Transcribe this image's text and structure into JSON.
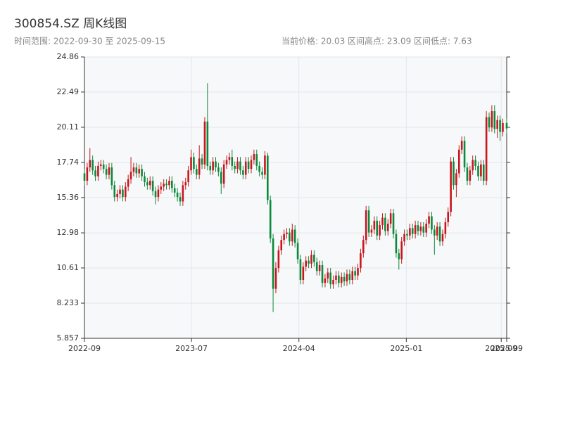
{
  "chart_data": {
    "type": "candlestick",
    "title": "300854.SZ 周K线图",
    "subtitle": "时间范围: 2022-09-30 至 2025-09-15",
    "annotations": [
      "当前价格: 20.03",
      "区间高点: 23.09",
      "区间低点: 7.63"
    ],
    "up_color": "#c8161d",
    "down_color": "#0b8a3b",
    "grid": true,
    "xlim": [
      "2022-09-30",
      "2025-09-15"
    ],
    "xticks": [
      {
        "value": "2022-09-30",
        "label": "2022-09"
      },
      {
        "value": "2023-07-01",
        "label": "2023-07"
      },
      {
        "value": "2024-04-01",
        "label": "2024-04"
      },
      {
        "value": "2025-01-01",
        "label": "2025-01"
      },
      {
        "value": "2025-09-01",
        "label": "2025-09"
      },
      {
        "value": "2025-09-15",
        "label": "2025-09"
      }
    ],
    "ylim": [
      5.857,
      24.86
    ],
    "yticks": [
      5.857,
      8.233,
      10.61,
      12.98,
      15.36,
      17.74,
      20.11,
      22.49,
      24.86
    ],
    "x": [
      "2022-09-30",
      "2022-10-07",
      "2022-10-14",
      "2022-10-21",
      "2022-10-28",
      "2022-11-04",
      "2022-11-11",
      "2022-11-18",
      "2022-11-25",
      "2022-12-02",
      "2022-12-09",
      "2022-12-16",
      "2022-12-23",
      "2022-12-30",
      "2023-01-06",
      "2023-01-13",
      "2023-01-20",
      "2023-01-27",
      "2023-02-03",
      "2023-02-10",
      "2023-02-17",
      "2023-02-24",
      "2023-03-03",
      "2023-03-10",
      "2023-03-17",
      "2023-03-24",
      "2023-03-31",
      "2023-04-07",
      "2023-04-14",
      "2023-04-21",
      "2023-04-28",
      "2023-05-05",
      "2023-05-12",
      "2023-05-19",
      "2023-05-26",
      "2023-06-02",
      "2023-06-09",
      "2023-06-16",
      "2023-06-23",
      "2023-06-30",
      "2023-07-07",
      "2023-07-14",
      "2023-07-21",
      "2023-07-28",
      "2023-08-04",
      "2023-08-11",
      "2023-08-18",
      "2023-08-25",
      "2023-09-01",
      "2023-09-08",
      "2023-09-15",
      "2023-09-22",
      "2023-09-29",
      "2023-10-06",
      "2023-10-13",
      "2023-10-20",
      "2023-10-27",
      "2023-11-03",
      "2023-11-10",
      "2023-11-17",
      "2023-11-24",
      "2023-12-01",
      "2023-12-08",
      "2023-12-15",
      "2023-12-22",
      "2023-12-29",
      "2024-01-05",
      "2024-01-12",
      "2024-01-19",
      "2024-01-26",
      "2024-02-02",
      "2024-02-09",
      "2024-02-16",
      "2024-02-23",
      "2024-03-01",
      "2024-03-08",
      "2024-03-15",
      "2024-03-22",
      "2024-03-29",
      "2024-04-05",
      "2024-04-12",
      "2024-04-19",
      "2024-04-26",
      "2024-05-03",
      "2024-05-10",
      "2024-05-17",
      "2024-05-24",
      "2024-05-31",
      "2024-06-07",
      "2024-06-14",
      "2024-06-21",
      "2024-06-28",
      "2024-07-05",
      "2024-07-12",
      "2024-07-19",
      "2024-07-26",
      "2024-08-02",
      "2024-08-09",
      "2024-08-16",
      "2024-08-23",
      "2024-08-30",
      "2024-09-06",
      "2024-09-13",
      "2024-09-20",
      "2024-09-27",
      "2024-10-04",
      "2024-10-11",
      "2024-10-18",
      "2024-10-25",
      "2024-11-01",
      "2024-11-08",
      "2024-11-15",
      "2024-11-22",
      "2024-11-29",
      "2024-12-06",
      "2024-12-13",
      "2024-12-20",
      "2024-12-27",
      "2025-01-03",
      "2025-01-10",
      "2025-01-17",
      "2025-01-24",
      "2025-01-31",
      "2025-02-07",
      "2025-02-14",
      "2025-02-21",
      "2025-02-28",
      "2025-03-07",
      "2025-03-14",
      "2025-03-21",
      "2025-03-28",
      "2025-04-04",
      "2025-04-11",
      "2025-04-18",
      "2025-04-25",
      "2025-05-02",
      "2025-05-09",
      "2025-05-16",
      "2025-05-23",
      "2025-05-30",
      "2025-06-06",
      "2025-06-13",
      "2025-06-20",
      "2025-06-27",
      "2025-07-04",
      "2025-07-11",
      "2025-07-18",
      "2025-07-25",
      "2025-08-01",
      "2025-08-08",
      "2025-08-15",
      "2025-08-22",
      "2025-08-29",
      "2025-09-05",
      "2025-09-15"
    ],
    "open": [
      17.0,
      16.5,
      17.4,
      17.9,
      17.2,
      16.8,
      17.5,
      17.6,
      17.3,
      16.9,
      17.4,
      16.2,
      15.4,
      15.6,
      15.9,
      15.4,
      16.1,
      16.6,
      17.1,
      17.4,
      17.0,
      17.3,
      16.8,
      16.4,
      16.2,
      16.5,
      15.8,
      15.4,
      15.9,
      16.1,
      16.3,
      16.2,
      16.5,
      16.0,
      15.7,
      15.4,
      15.1,
      16.2,
      16.4,
      17.2,
      18.1,
      17.3,
      16.9,
      18.0,
      17.6,
      20.5,
      17.5,
      17.2,
      17.8,
      17.4,
      17.1,
      16.3,
      17.6,
      17.9,
      18.1,
      17.5,
      17.3,
      17.8,
      17.2,
      16.9,
      17.8,
      17.3,
      17.9,
      18.3,
      17.5,
      17.1,
      16.9,
      18.2,
      15.2,
      12.6,
      9.2,
      10.6,
      11.8,
      12.5,
      12.9,
      13.0,
      12.4,
      13.2,
      12.3,
      11.2,
      9.8,
      10.7,
      11.1,
      10.9,
      11.5,
      11.0,
      10.4,
      10.8,
      9.6,
      9.9,
      10.3,
      9.5,
      9.8,
      10.1,
      9.6,
      10.0,
      9.7,
      10.2,
      9.8,
      10.4,
      10.1,
      10.6,
      11.6,
      12.5,
      14.5,
      13.0,
      13.2,
      13.8,
      12.8,
      13.5,
      14.0,
      13.1,
      13.6,
      14.3,
      12.9,
      11.6,
      11.2,
      12.4,
      12.9,
      12.8,
      13.3,
      12.9,
      13.5,
      13.1,
      13.4,
      13.0,
      13.6,
      14.1,
      13.2,
      12.8,
      13.4,
      12.4,
      12.9,
      13.7,
      14.4,
      17.8,
      16.2,
      17.0,
      18.6,
      19.2,
      17.4,
      16.5,
      17.2,
      17.9,
      17.5,
      16.8,
      17.6,
      16.5,
      20.8,
      20.1,
      21.2,
      20.0,
      20.6,
      19.8,
      20.4
    ],
    "high": [
      17.3,
      17.7,
      18.7,
      18.2,
      17.5,
      17.8,
      17.9,
      17.9,
      17.6,
      17.7,
      17.7,
      16.5,
      15.9,
      16.2,
      16.2,
      16.4,
      16.9,
      18.1,
      17.7,
      17.7,
      17.6,
      17.6,
      17.1,
      16.7,
      16.8,
      16.8,
      16.1,
      16.2,
      16.4,
      16.6,
      16.6,
      16.8,
      16.8,
      16.3,
      16.0,
      15.7,
      16.5,
      16.7,
      17.5,
      18.6,
      18.4,
      17.6,
      18.9,
      18.3,
      20.8,
      23.09,
      17.8,
      18.1,
      18.1,
      17.7,
      17.4,
      17.9,
      18.2,
      18.4,
      18.6,
      17.8,
      18.1,
      18.1,
      17.5,
      18.1,
      18.1,
      18.2,
      18.6,
      18.6,
      17.8,
      17.4,
      18.5,
      18.4,
      15.5,
      12.9,
      11.0,
      12.1,
      12.8,
      13.2,
      13.3,
      13.3,
      13.6,
      13.5,
      12.6,
      11.5,
      11.0,
      11.4,
      11.4,
      11.8,
      11.8,
      11.3,
      11.1,
      11.1,
      10.2,
      10.6,
      10.6,
      10.1,
      10.4,
      10.4,
      10.3,
      10.3,
      10.5,
      10.5,
      10.7,
      10.7,
      10.9,
      11.9,
      12.8,
      14.8,
      14.8,
      13.5,
      14.1,
      14.1,
      13.8,
      14.3,
      14.3,
      13.9,
      14.6,
      14.6,
      13.2,
      11.9,
      12.7,
      13.2,
      13.2,
      13.6,
      13.6,
      13.8,
      13.8,
      13.7,
      13.7,
      13.9,
      14.4,
      14.4,
      13.5,
      13.7,
      13.7,
      13.2,
      14.0,
      14.7,
      18.1,
      18.1,
      17.3,
      18.9,
      19.5,
      19.5,
      17.7,
      17.5,
      18.2,
      18.2,
      17.8,
      17.9,
      17.9,
      21.2,
      21.1,
      21.6,
      21.6,
      20.9,
      20.9,
      20.7,
      20.7
    ],
    "low": [
      16.2,
      16.2,
      17.1,
      16.9,
      16.5,
      16.5,
      17.2,
      17.0,
      16.6,
      16.6,
      15.9,
      15.1,
      15.1,
      15.3,
      15.1,
      15.1,
      15.8,
      16.3,
      16.8,
      16.7,
      16.7,
      16.5,
      16.1,
      15.9,
      15.9,
      15.5,
      14.9,
      15.1,
      15.6,
      15.8,
      15.9,
      15.9,
      15.7,
      15.4,
      15.1,
      14.8,
      14.8,
      15.9,
      16.1,
      16.9,
      17.0,
      16.6,
      16.6,
      17.3,
      17.3,
      17.2,
      16.9,
      16.9,
      17.1,
      16.8,
      15.6,
      16.0,
      17.3,
      17.6,
      17.2,
      17.0,
      17.0,
      16.9,
      16.6,
      16.6,
      17.0,
      17.0,
      17.6,
      17.2,
      16.8,
      16.6,
      16.6,
      14.9,
      12.3,
      7.63,
      8.9,
      10.3,
      11.5,
      12.2,
      12.6,
      12.1,
      12.1,
      12.0,
      10.9,
      9.5,
      9.5,
      10.4,
      10.6,
      10.6,
      10.7,
      10.1,
      10.1,
      9.3,
      9.3,
      9.6,
      9.2,
      9.2,
      9.5,
      9.3,
      9.3,
      9.4,
      9.4,
      9.5,
      9.5,
      9.8,
      9.8,
      10.3,
      11.3,
      12.2,
      12.7,
      12.7,
      12.9,
      12.5,
      12.5,
      13.2,
      12.8,
      12.8,
      13.3,
      12.6,
      11.3,
      10.5,
      10.9,
      12.1,
      12.5,
      12.5,
      12.6,
      12.6,
      12.8,
      12.8,
      12.7,
      12.7,
      13.3,
      12.9,
      11.5,
      12.5,
      12.1,
      12.1,
      12.6,
      13.4,
      14.1,
      15.9,
      15.4,
      16.7,
      18.3,
      17.1,
      16.2,
      16.2,
      16.9,
      17.2,
      16.5,
      16.5,
      16.2,
      16.2,
      19.8,
      19.8,
      19.7,
      19.4,
      19.2,
      19.5,
      19.7
    ],
    "close": [
      16.5,
      17.4,
      17.9,
      17.2,
      16.8,
      17.5,
      17.6,
      17.3,
      16.9,
      17.4,
      16.2,
      15.4,
      15.6,
      15.9,
      15.4,
      16.1,
      16.6,
      17.1,
      17.4,
      17.0,
      17.3,
      16.8,
      16.4,
      16.2,
      16.5,
      15.8,
      15.4,
      15.9,
      16.1,
      16.3,
      16.2,
      16.5,
      16.0,
      15.7,
      15.4,
      15.1,
      16.2,
      16.4,
      17.2,
      18.1,
      17.3,
      16.9,
      18.0,
      17.6,
      20.5,
      17.5,
      17.2,
      17.8,
      17.4,
      17.1,
      16.3,
      17.6,
      17.9,
      18.1,
      17.5,
      17.3,
      17.8,
      17.2,
      16.9,
      17.8,
      17.3,
      17.9,
      18.3,
      17.5,
      17.1,
      16.9,
      18.2,
      15.2,
      12.6,
      9.2,
      10.6,
      11.8,
      12.5,
      12.9,
      13.0,
      12.4,
      13.2,
      12.3,
      11.2,
      9.8,
      10.7,
      11.1,
      10.9,
      11.5,
      11.0,
      10.4,
      10.8,
      9.6,
      9.9,
      10.3,
      9.5,
      9.8,
      10.1,
      9.6,
      10.0,
      9.7,
      10.2,
      9.8,
      10.4,
      10.1,
      10.6,
      11.6,
      12.5,
      14.5,
      13.0,
      13.2,
      13.8,
      12.8,
      13.5,
      14.0,
      13.1,
      13.6,
      14.3,
      12.9,
      11.6,
      11.2,
      12.4,
      12.9,
      12.8,
      13.3,
      12.9,
      13.5,
      13.1,
      13.4,
      13.0,
      13.6,
      14.1,
      13.2,
      12.8,
      13.4,
      12.4,
      12.9,
      13.7,
      14.4,
      17.8,
      16.2,
      17.0,
      18.6,
      19.2,
      17.4,
      16.5,
      17.2,
      17.9,
      17.5,
      16.8,
      17.6,
      16.5,
      20.8,
      20.1,
      21.2,
      20.0,
      20.6,
      19.8,
      20.4,
      20.03
    ]
  }
}
